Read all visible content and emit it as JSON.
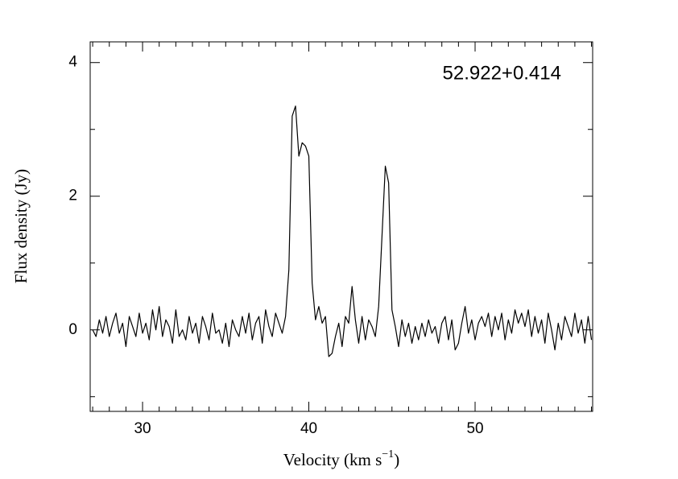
{
  "chart_data": {
    "type": "line",
    "annotation": "52.922+0.414",
    "xlabel": {
      "text": "Velocity (km s",
      "superscript": "−1",
      "suffix": ")"
    },
    "ylabel": "Flux density (Jy)",
    "xlim": [
      26.85,
      57.07
    ],
    "ylim": [
      -1.22,
      4.31
    ],
    "xticks": [
      30,
      40,
      50
    ],
    "yticks": [
      0,
      2,
      4
    ],
    "xminorticks": [
      27,
      28,
      29,
      31,
      32,
      33,
      34,
      35,
      36,
      37,
      38,
      39,
      41,
      42,
      43,
      44,
      45,
      46,
      47,
      48,
      49,
      51,
      52,
      53,
      54,
      55,
      56,
      57
    ],
    "yminorticks": [
      -1,
      1,
      3
    ],
    "color": "#000000",
    "x": [
      27.0,
      27.2,
      27.4,
      27.6,
      27.8,
      28.0,
      28.2,
      28.4,
      28.6,
      28.8,
      29.0,
      29.2,
      29.4,
      29.6,
      29.8,
      30.0,
      30.2,
      30.4,
      30.6,
      30.8,
      31.0,
      31.2,
      31.4,
      31.6,
      31.8,
      32.0,
      32.2,
      32.4,
      32.6,
      32.8,
      33.0,
      33.2,
      33.4,
      33.6,
      33.8,
      34.0,
      34.2,
      34.4,
      34.6,
      34.8,
      35.0,
      35.2,
      35.4,
      35.6,
      35.8,
      36.0,
      36.2,
      36.4,
      36.6,
      36.8,
      37.0,
      37.2,
      37.4,
      37.6,
      37.8,
      38.0,
      38.2,
      38.4,
      38.6,
      38.8,
      39.0,
      39.2,
      39.4,
      39.6,
      39.8,
      40.0,
      40.2,
      40.4,
      40.6,
      40.8,
      41.0,
      41.2,
      41.4,
      41.6,
      41.8,
      42.0,
      42.2,
      42.4,
      42.6,
      42.8,
      43.0,
      43.2,
      43.4,
      43.6,
      43.8,
      44.0,
      44.2,
      44.4,
      44.6,
      44.8,
      45.0,
      45.2,
      45.4,
      45.6,
      45.8,
      46.0,
      46.2,
      46.4,
      46.6,
      46.8,
      47.0,
      47.2,
      47.4,
      47.6,
      47.8,
      48.0,
      48.2,
      48.4,
      48.6,
      48.8,
      49.0,
      49.2,
      49.4,
      49.6,
      49.8,
      50.0,
      50.2,
      50.4,
      50.6,
      50.8,
      51.0,
      51.2,
      51.4,
      51.6,
      51.8,
      52.0,
      52.2,
      52.4,
      52.6,
      52.8,
      53.0,
      53.2,
      53.4,
      53.6,
      53.8,
      54.0,
      54.2,
      54.4,
      54.6,
      54.8,
      55.0,
      55.2,
      55.4,
      55.6,
      55.8,
      56.0,
      56.2,
      56.4,
      56.6,
      56.8,
      57.0
    ],
    "values": [
      0.0,
      -0.1,
      0.15,
      -0.05,
      0.2,
      -0.1,
      0.1,
      0.25,
      -0.05,
      0.1,
      -0.25,
      0.2,
      0.05,
      -0.1,
      0.25,
      -0.05,
      0.1,
      -0.15,
      0.3,
      0.0,
      0.35,
      -0.1,
      0.15,
      0.05,
      -0.2,
      0.3,
      -0.1,
      0.0,
      -0.15,
      0.2,
      -0.05,
      0.1,
      -0.2,
      0.2,
      0.05,
      -0.15,
      0.25,
      -0.05,
      0.0,
      -0.2,
      0.1,
      -0.25,
      0.15,
      0.0,
      -0.1,
      0.2,
      -0.05,
      0.25,
      -0.15,
      0.1,
      0.2,
      -0.2,
      0.3,
      0.05,
      -0.1,
      0.25,
      0.1,
      -0.05,
      0.2,
      0.9,
      3.2,
      3.35,
      2.6,
      2.8,
      2.75,
      2.6,
      0.7,
      0.15,
      0.35,
      0.1,
      0.2,
      -0.4,
      -0.35,
      -0.1,
      0.1,
      -0.25,
      0.2,
      0.1,
      0.65,
      0.15,
      -0.2,
      0.2,
      -0.15,
      0.15,
      0.05,
      -0.1,
      0.35,
      1.4,
      2.45,
      2.2,
      0.3,
      0.05,
      -0.25,
      0.15,
      -0.1,
      0.1,
      -0.2,
      0.05,
      -0.15,
      0.1,
      -0.1,
      0.15,
      -0.05,
      0.05,
      -0.2,
      0.1,
      0.2,
      -0.15,
      0.15,
      -0.3,
      -0.2,
      0.1,
      0.35,
      -0.05,
      0.15,
      -0.15,
      0.1,
      0.2,
      0.05,
      0.25,
      -0.1,
      0.2,
      0.0,
      0.25,
      -0.15,
      0.15,
      -0.05,
      0.3,
      0.1,
      0.25,
      0.05,
      0.3,
      -0.1,
      0.2,
      -0.05,
      0.15,
      -0.2,
      0.25,
      0.0,
      -0.3,
      0.1,
      -0.15,
      0.2,
      0.05,
      -0.1,
      0.25,
      -0.05,
      0.15,
      -0.2,
      0.2,
      -0.15
    ]
  }
}
